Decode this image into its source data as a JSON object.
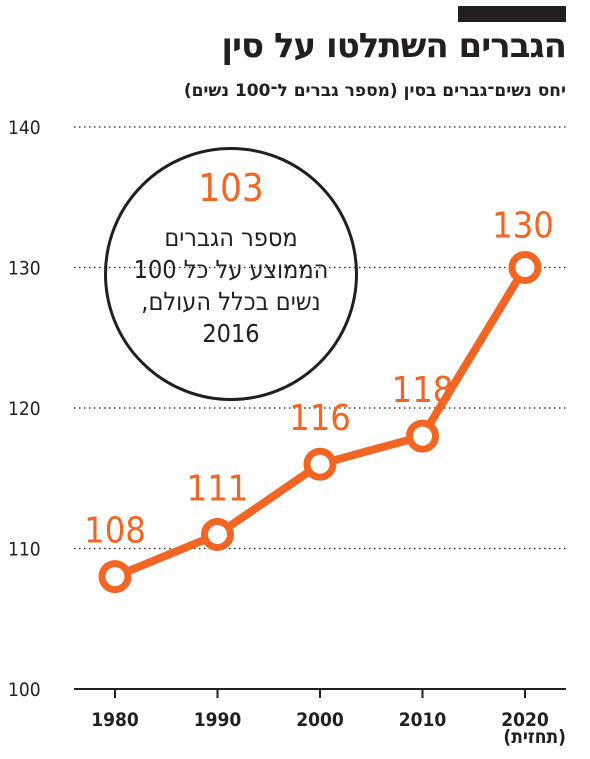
{
  "header": {
    "title": "הגברים השתלטו על סין",
    "subtitle": "יחס נשים־גברים בסין (מספר גברים ל־100 נשים)"
  },
  "callout": {
    "value": "103",
    "text": "מספר הגברים הממוצע על כל 100 נשים בכלל העולם, 2016"
  },
  "x_note": "(תחזית)",
  "chart_data": {
    "type": "line",
    "title": "הגברים השתלטו על סין",
    "subtitle": "יחס נשים־גברים בסין (מספר גברים ל־100 נשים)",
    "x": [
      1980,
      1990,
      2000,
      2010,
      2020
    ],
    "series": [
      {
        "values": [
          108,
          111,
          116,
          118,
          130
        ]
      }
    ],
    "data_labels": [
      "108",
      "111",
      "116",
      "118",
      "130"
    ],
    "y_ticks": [
      "100",
      "110",
      "120",
      "130",
      "140"
    ],
    "x_ticks": [
      "1980",
      "1990",
      "2000",
      "2010",
      "2020"
    ],
    "ylim": [
      100,
      140
    ],
    "grid": "dotted horizontal",
    "colors": {
      "line": "#f26522",
      "text": "#231f20",
      "grid": "#231f20"
    }
  }
}
